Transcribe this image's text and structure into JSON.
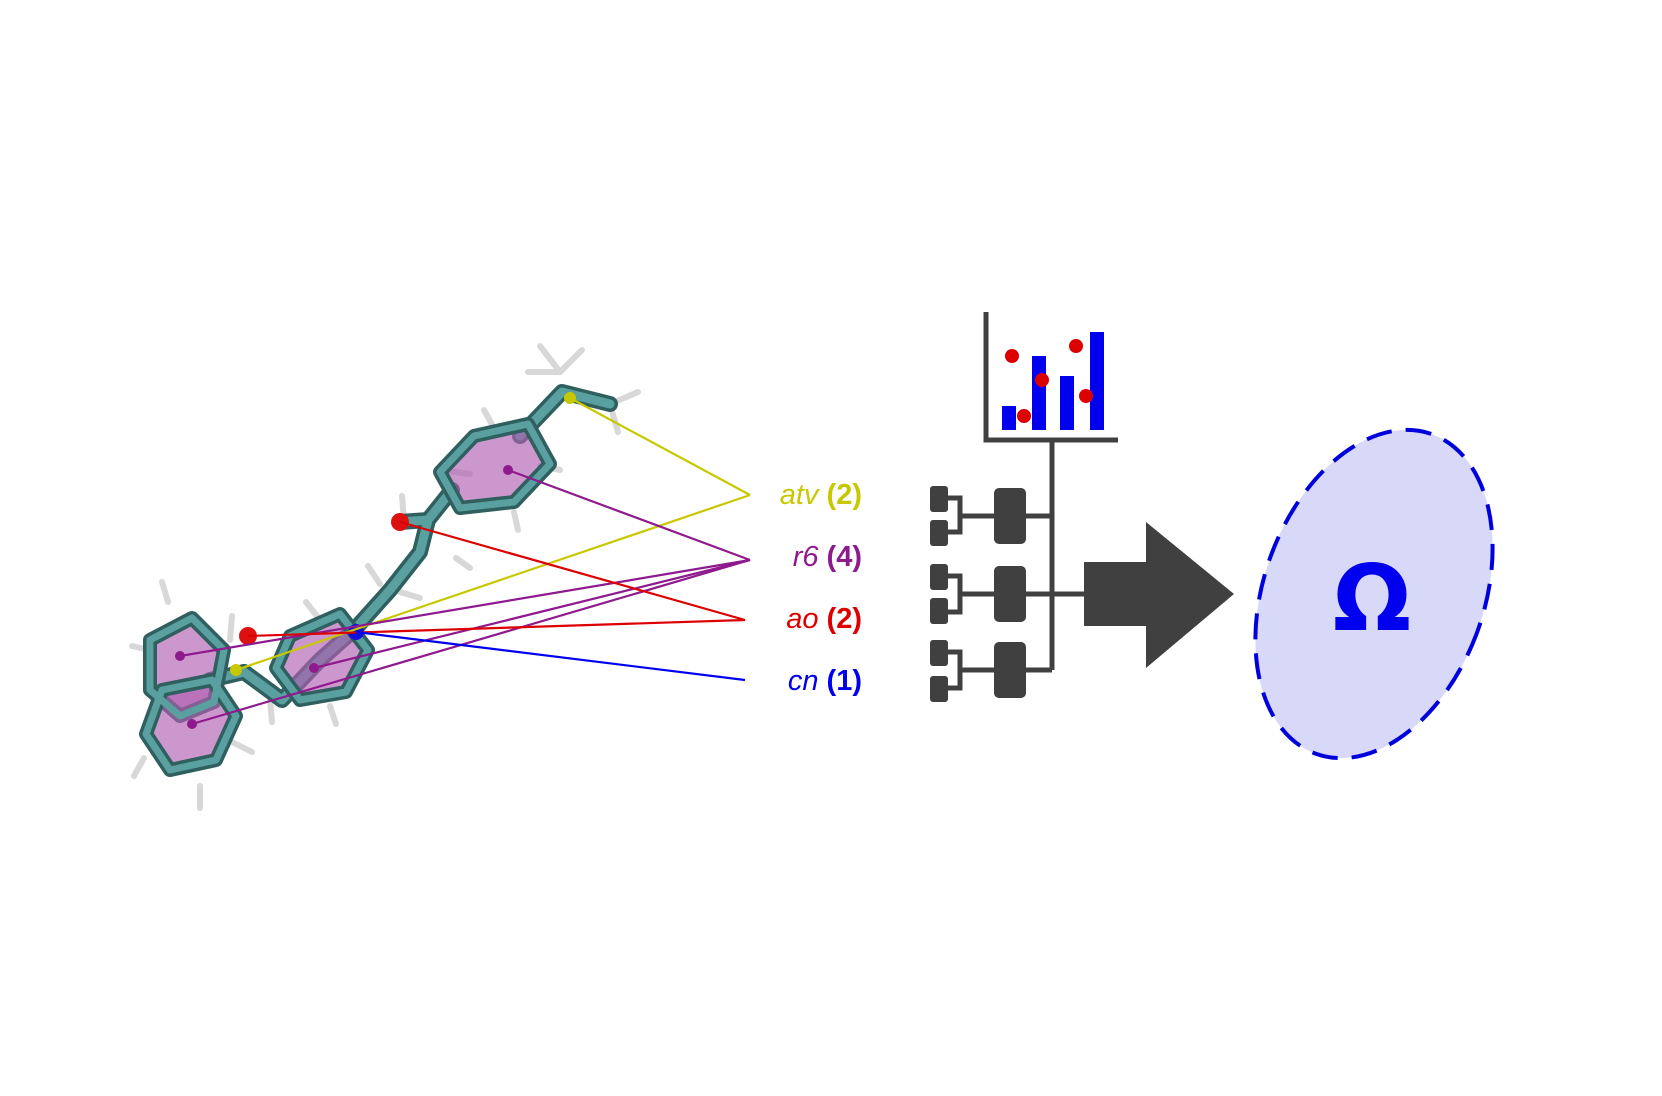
{
  "descriptors": [
    {
      "name": "atv",
      "count": "(2)",
      "color": "#c8c800"
    },
    {
      "name": "r6",
      "count": "(4)",
      "color": "#8e1a8e"
    },
    {
      "name": "ao",
      "count": "(2)",
      "color": "#dd0000"
    },
    {
      "name": "cn",
      "count": "(1)",
      "color": "#0000ee"
    }
  ],
  "output_symbol": "Ω",
  "colors": {
    "molecule_bond": "#4a8a8a",
    "ring_fill": "#b060b0",
    "network": "#404040",
    "bar": "#0000ee",
    "dot": "#dd0000",
    "ellipse_fill": "#d8d8f8",
    "ellipse_stroke": "#0000dd",
    "omega": "#0000ee"
  },
  "icons": [
    "molecule-icon",
    "neural-network-icon",
    "chart-icon",
    "arrow-icon",
    "output-ellipse-icon"
  ]
}
